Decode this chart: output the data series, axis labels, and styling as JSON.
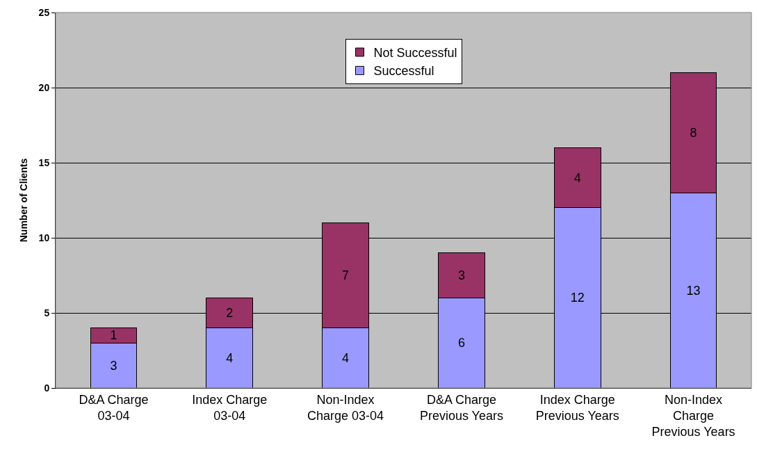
{
  "chart_data": {
    "type": "bar",
    "stacked": true,
    "ylabel": "Number of Clients",
    "categories": [
      "D&A Charge 03-04",
      "Index Charge 03-04",
      "Non-Index Charge 03-04",
      "D&A Charge Previous Years",
      "Index Charge Previous Years",
      "Non-Index Charge Previous Years"
    ],
    "series": [
      {
        "name": "Successful",
        "color": "#9999ff",
        "values": [
          3,
          4,
          4,
          6,
          12,
          13
        ]
      },
      {
        "name": "Not Successful",
        "color": "#993366",
        "values": [
          1,
          2,
          7,
          3,
          4,
          8
        ]
      }
    ],
    "ylim": [
      0,
      25
    ],
    "yticks": [
      0,
      5,
      10,
      15,
      20,
      25
    ],
    "grid": "y",
    "legend": "top",
    "data_labels": true
  }
}
